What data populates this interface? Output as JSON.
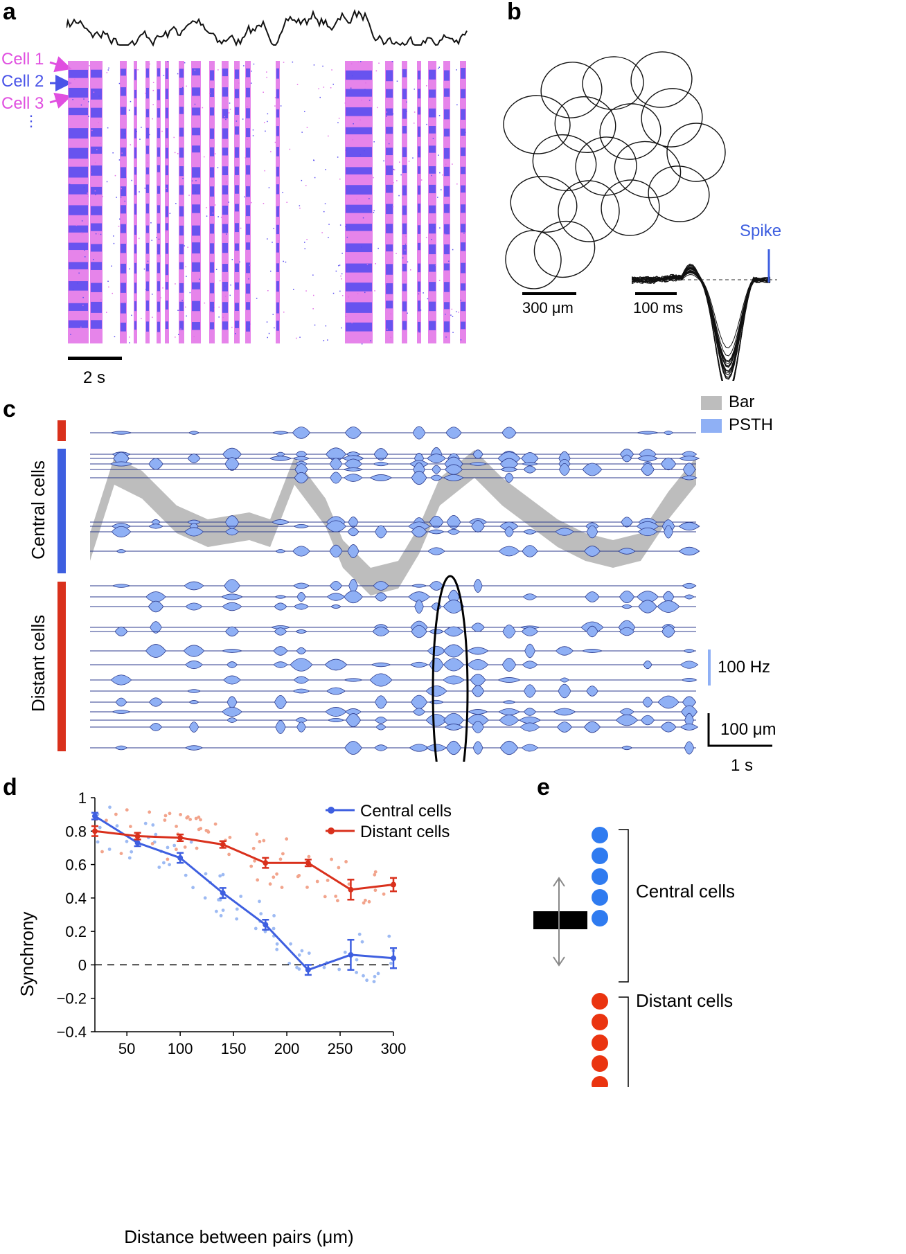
{
  "panels": {
    "a": {
      "label": "a",
      "cell_labels": [
        "Cell 1",
        "Cell 2",
        "Cell 3"
      ],
      "ellipsis": "⋮",
      "scalebar": "2 s",
      "colors": {
        "magenta": "#e26ee6",
        "blue": "#5a4ef0",
        "trace": "#111111"
      }
    },
    "b": {
      "label": "b",
      "spike_label": "Spike",
      "scalebar_space": "300 μm",
      "scalebar_time": "100 ms",
      "spike_color": "#3e5fe0"
    },
    "c": {
      "label": "c",
      "legend": [
        "Bar",
        "PSTH"
      ],
      "central_label": "Central cells",
      "distant_label": "Distant cells",
      "scale_rate": "100 Hz",
      "scale_space": "100 μm",
      "scale_time": "1 s",
      "colors": {
        "bar": "#bdbdbd",
        "psth": "#8fb0f5",
        "central": "#3e5fe0",
        "distant": "#d9301c"
      }
    },
    "d": {
      "label": "d"
    },
    "e": {
      "label": "e",
      "central_label": "Central cells",
      "distant_label": "Distant cells",
      "colors": {
        "central": "#2f7bf0",
        "distant": "#ea3410"
      }
    }
  },
  "chart_data": {
    "type": "line",
    "xlabel": "Distance between pairs (μm)",
    "ylabel": "Synchrony",
    "xlim": [
      20,
      300
    ],
    "ylim": [
      -0.4,
      1
    ],
    "xticks": [
      50,
      100,
      150,
      200,
      250,
      300
    ],
    "yticks": [
      1,
      0.8,
      0.6,
      0.4,
      0.2,
      0,
      -0.2,
      -0.4
    ],
    "ytick_labels": [
      "1",
      "0.8",
      "0.6",
      "0.4",
      "0.2",
      "0",
      "−0.2",
      "−0.4"
    ],
    "zero_line": "dashed",
    "legend_position": "top-right",
    "series": [
      {
        "name": "Central cells",
        "color": "#3e5fe0",
        "x": [
          20,
          60,
          100,
          140,
          180,
          220,
          260,
          300
        ],
        "y": [
          0.89,
          0.73,
          0.64,
          0.43,
          0.24,
          -0.03,
          0.06,
          0.04
        ],
        "err": [
          0.02,
          0.02,
          0.03,
          0.03,
          0.03,
          0.03,
          0.09,
          0.06
        ]
      },
      {
        "name": "Distant cells",
        "color": "#d9301c",
        "x": [
          20,
          60,
          100,
          140,
          180,
          220,
          260,
          300
        ],
        "y": [
          0.8,
          0.77,
          0.76,
          0.72,
          0.61,
          0.61,
          0.45,
          0.48
        ],
        "err": [
          0.03,
          0.02,
          0.02,
          0.02,
          0.03,
          0.02,
          0.06,
          0.04
        ]
      }
    ]
  }
}
